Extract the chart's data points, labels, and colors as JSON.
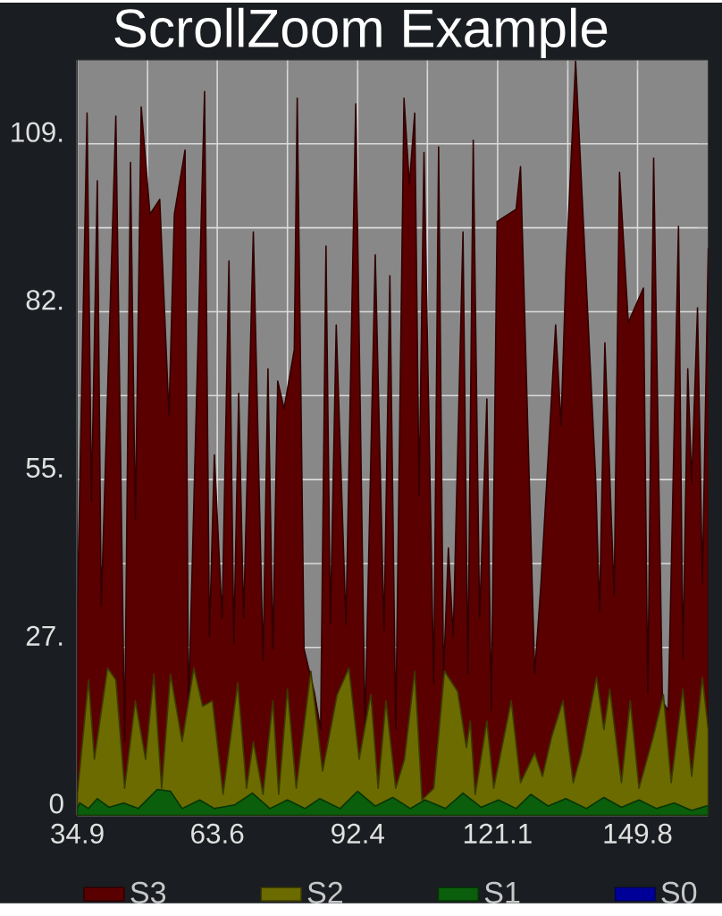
{
  "chart_data": {
    "type": "area",
    "title": "ScrollZoom Example",
    "xlim": [
      34.9,
      164.3
    ],
    "ylim": [
      0,
      122.625
    ],
    "xticks": [
      34.9,
      {
        "value": 49.3,
        "label": null
      },
      63.6,
      {
        "value": 78.0,
        "label": null
      },
      92.4,
      {
        "value": 106.7,
        "label": null
      },
      121.1,
      {
        "value": 135.5,
        "label": null
      },
      149.8
    ],
    "yticks": [
      0,
      {
        "value": 13.625,
        "label": null
      },
      {
        "value": 27.25,
        "label": "27."
      },
      {
        "value": 40.875,
        "label": null
      },
      {
        "value": 54.5,
        "label": "55."
      },
      {
        "value": 68.125,
        "label": null
      },
      {
        "value": 81.75,
        "label": "82."
      },
      {
        "value": 95.375,
        "label": null
      },
      {
        "value": 109,
        "label": "109."
      }
    ],
    "grid": true,
    "legend": "bottom",
    "series": [
      {
        "name": "S3",
        "color": "#5a0000",
        "x": [
          34.9,
          36.9,
          37.8,
          39.0,
          39.8,
          42.8,
          44.6,
          45.8,
          46.8,
          48.0,
          49.8,
          50.6,
          51.8,
          53.7,
          54.8,
          55.8,
          57.0,
          57.7,
          59.0,
          61.0,
          62.0,
          63.0,
          64.6,
          66.0,
          67.0,
          68.0,
          69.0,
          71.0,
          73.0,
          74.0,
          75.0,
          76.0,
          77.3,
          79.4,
          80.0,
          81.4,
          83.5,
          84.8,
          85.9,
          86.8,
          88.0,
          90.0,
          92.0,
          93.9,
          96.0,
          97.8,
          99.0,
          100.2,
          101.9,
          103.0,
          104.1,
          105.0,
          106.0,
          108.0,
          109.0,
          110.0,
          111.0,
          112.0,
          114.0,
          115.0,
          116.1,
          117.4,
          118.9,
          119.8,
          121.0,
          122.2,
          124.9,
          125.8,
          128.7,
          130.0,
          131.8,
          133.0,
          134.1,
          135.1,
          137.1,
          139.9,
          141.2,
          142.0,
          143.1,
          145.0,
          146.1,
          147.9,
          150.3,
          151.0,
          151.9,
          153.1,
          154.9,
          156.1,
          158.2,
          159.1,
          160.1,
          160.9,
          162.1,
          163.1,
          164.3
        ],
        "values": [
          33,
          114,
          51,
          103,
          34,
          113.5,
          12,
          106,
          48,
          115,
          97.6,
          null,
          100,
          65,
          97.6,
          null,
          108,
          17,
          57,
          117.5,
          29,
          58.5,
          32,
          90,
          28,
          68.5,
          32,
          94.7,
          25,
          72.5,
          27,
          70.5,
          66,
          75.6,
          116.4,
          27,
          20,
          14,
          92.4,
          31,
          79.6,
          31,
          115.5,
          14,
          91,
          30,
          87.6,
          14,
          116.4,
          102.4,
          114,
          52,
          107.6,
          21.4,
          108.5,
          22.5,
          43.4,
          29,
          94.7,
          23,
          109.6,
          32,
          67.6,
          17,
          96.4,
          null,
          98.4,
          105.3,
          23,
          37.7,
          null,
          79.6,
          63.3,
          88,
          122.4,
          null,
          54.8,
          33,
          76.7,
          35.7,
          104.4,
          80,
          null,
          85.6,
          19.7,
          106.7,
          18.5,
          17,
          95.6,
          25.4,
          72.5,
          54,
          82.4,
          37.7,
          92
        ]
      },
      {
        "name": "S2",
        "color": "#6b6b00",
        "x": [
          34.9,
          37.2,
          38.4,
          41.1,
          42.8,
          44.6,
          46.8,
          48.9,
          50.6,
          52.2,
          54.0,
          56.4,
          58.8,
          60.6,
          62.6,
          64.8,
          67.8,
          69.6,
          71.0,
          73.0,
          75.0,
          76.2,
          78.0,
          79.8,
          82.8,
          85.2,
          88.2,
          90.6,
          92.7,
          95.1,
          96.6,
          98.2,
          100.2,
          102.0,
          104.1,
          105.6,
          108.0,
          110.2,
          112.9,
          114.7,
          115.5,
          116.5,
          118.9,
          120.3,
          123.9,
          125.8,
          128.7,
          130.3,
          132.1,
          134.5,
          136.6,
          138.3,
          141.4,
          142.9,
          144.1,
          146.5,
          148.3,
          150.1,
          153.1,
          155.1,
          156.7,
          159.1,
          160.9,
          163.1,
          164.3
        ],
        "values": [
          3.4,
          22,
          9.1,
          23.9,
          22,
          4.4,
          18.6,
          9.1,
          22.9,
          4.4,
          22.9,
          12,
          23.9,
          17.7,
          18.6,
          3.4,
          21.5,
          4.4,
          12,
          3.4,
          18.6,
          3.4,
          20.5,
          4.4,
          23.4,
          7.2,
          19.6,
          23.9,
          9.1,
          19.6,
          4.4,
          18.6,
          4.4,
          9.1,
          23.4,
          2.5,
          4.4,
          23.4,
          20.1,
          11,
          15.3,
          3.4,
          15.3,
          4.4,
          18.6,
          5.3,
          10.1,
          6.3,
          12.5,
          18.6,
          5.3,
          10.1,
          22.4,
          13.9,
          20.5,
          5.3,
          18.6,
          4.4,
          13,
          19.6,
          5.3,
          20.5,
          6.3,
          22.4,
          13.9
        ]
      },
      {
        "name": "S1",
        "color": "#0b5e0b",
        "x": [
          34.9,
          35.4,
          37.2,
          39.0,
          41.4,
          44.4,
          47.4,
          51.3,
          54.0,
          56.4,
          60.0,
          63.0,
          67.2,
          70.8,
          74.4,
          78.0,
          81.6,
          84.6,
          88.8,
          92.4,
          96.0,
          99.6,
          103.2,
          106.2,
          110.4,
          114.0,
          117.7,
          121.3,
          124.9,
          127.9,
          131.5,
          135.1,
          139.3,
          142.9,
          146.5,
          150.1,
          153.7,
          157.3,
          160.9,
          163.9,
          164.3
        ],
        "values": [
          1.1,
          2.0,
          1.1,
          2.7,
          1.3,
          2.0,
          1.1,
          4.2,
          3.9,
          1.1,
          2.5,
          1.1,
          1.7,
          3.6,
          1.1,
          2.5,
          1.1,
          2.7,
          1.1,
          3.9,
          1.5,
          2.9,
          1.1,
          2.5,
          1.1,
          3.6,
          1.3,
          2.5,
          1.1,
          3.4,
          1.5,
          2.7,
          1.1,
          2.9,
          1.3,
          2.5,
          1.1,
          2.0,
          0.8,
          1.5,
          1.5
        ]
      },
      {
        "name": "S0",
        "color": "#000099"
      }
    ]
  }
}
